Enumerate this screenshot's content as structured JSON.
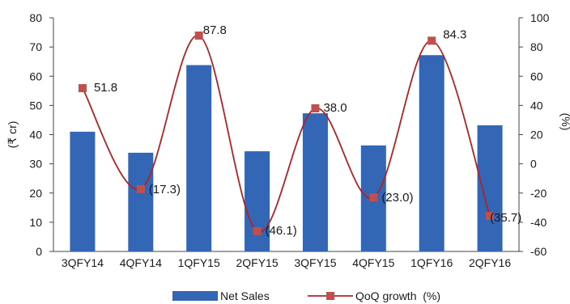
{
  "chart_data": {
    "type": "bar",
    "categories": [
      "3QFY14",
      "4QFY14",
      "1QFY15",
      "2QFY15",
      "3QFY15",
      "4QFY15",
      "1QFY16",
      "2QFY16"
    ],
    "series": [
      {
        "name": "Net Sales",
        "type": "bar",
        "axis": "left",
        "color": "#3366b5",
        "values": [
          41,
          33.8,
          63.8,
          34.3,
          47.3,
          36.3,
          67.2,
          43.2
        ]
      },
      {
        "name": "QoQ growth  (%)",
        "type": "line",
        "axis": "right",
        "line_color": "#b22222",
        "marker_color": "#c0504d",
        "values": [
          51.8,
          -17.3,
          87.8,
          -46.1,
          38.0,
          -23.0,
          84.3,
          -35.7
        ],
        "data_labels": [
          "51.8",
          "(17.3)",
          "87.8",
          "(46.1)",
          "38.0",
          "(23.0)",
          "84.3",
          "(35.7)"
        ]
      }
    ],
    "y_left": {
      "label": "(₹ cr)",
      "ylim": [
        0,
        80
      ],
      "ticks": [
        0,
        10,
        20,
        30,
        40,
        50,
        60,
        70,
        80
      ]
    },
    "y_right": {
      "label": "(%)",
      "ylim": [
        -60,
        100
      ],
      "ticks": [
        -60,
        -40,
        -20,
        0,
        20,
        40,
        60,
        80,
        100
      ]
    },
    "grid": false,
    "legend_position": "bottom"
  }
}
